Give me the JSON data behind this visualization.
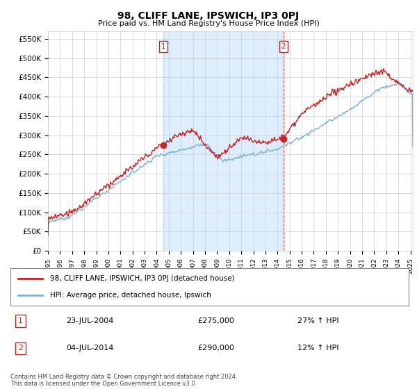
{
  "title": "98, CLIFF LANE, IPSWICH, IP3 0PJ",
  "subtitle": "Price paid vs. HM Land Registry's House Price Index (HPI)",
  "ylabel_ticks": [
    "£0",
    "£50K",
    "£100K",
    "£150K",
    "£200K",
    "£250K",
    "£300K",
    "£350K",
    "£400K",
    "£450K",
    "£500K",
    "£550K"
  ],
  "ytick_values": [
    0,
    50000,
    100000,
    150000,
    200000,
    250000,
    300000,
    350000,
    400000,
    450000,
    500000,
    550000
  ],
  "ylim": [
    0,
    570000
  ],
  "xlim_start": 1995.0,
  "xlim_end": 2025.2,
  "hpi_color": "#7ab4d8",
  "price_color": "#cc2222",
  "shade_color": "#ddeeff",
  "sale1_x": 2004.55,
  "sale1_y": 275000,
  "sale2_x": 2014.5,
  "sale2_y": 290000,
  "legend_line1": "98, CLIFF LANE, IPSWICH, IP3 0PJ (detached house)",
  "legend_line2": "HPI: Average price, detached house, Ipswich",
  "table_row1_num": "1",
  "table_row1_date": "23-JUL-2004",
  "table_row1_price": "£275,000",
  "table_row1_hpi": "27% ↑ HPI",
  "table_row2_num": "2",
  "table_row2_date": "04-JUL-2014",
  "table_row2_price": "£290,000",
  "table_row2_hpi": "12% ↑ HPI",
  "footer": "Contains HM Land Registry data © Crown copyright and database right 2024.\nThis data is licensed under the Open Government Licence v3.0.",
  "bg_color": "#ffffff",
  "grid_color": "#cccccc",
  "font_family": "DejaVu Sans"
}
